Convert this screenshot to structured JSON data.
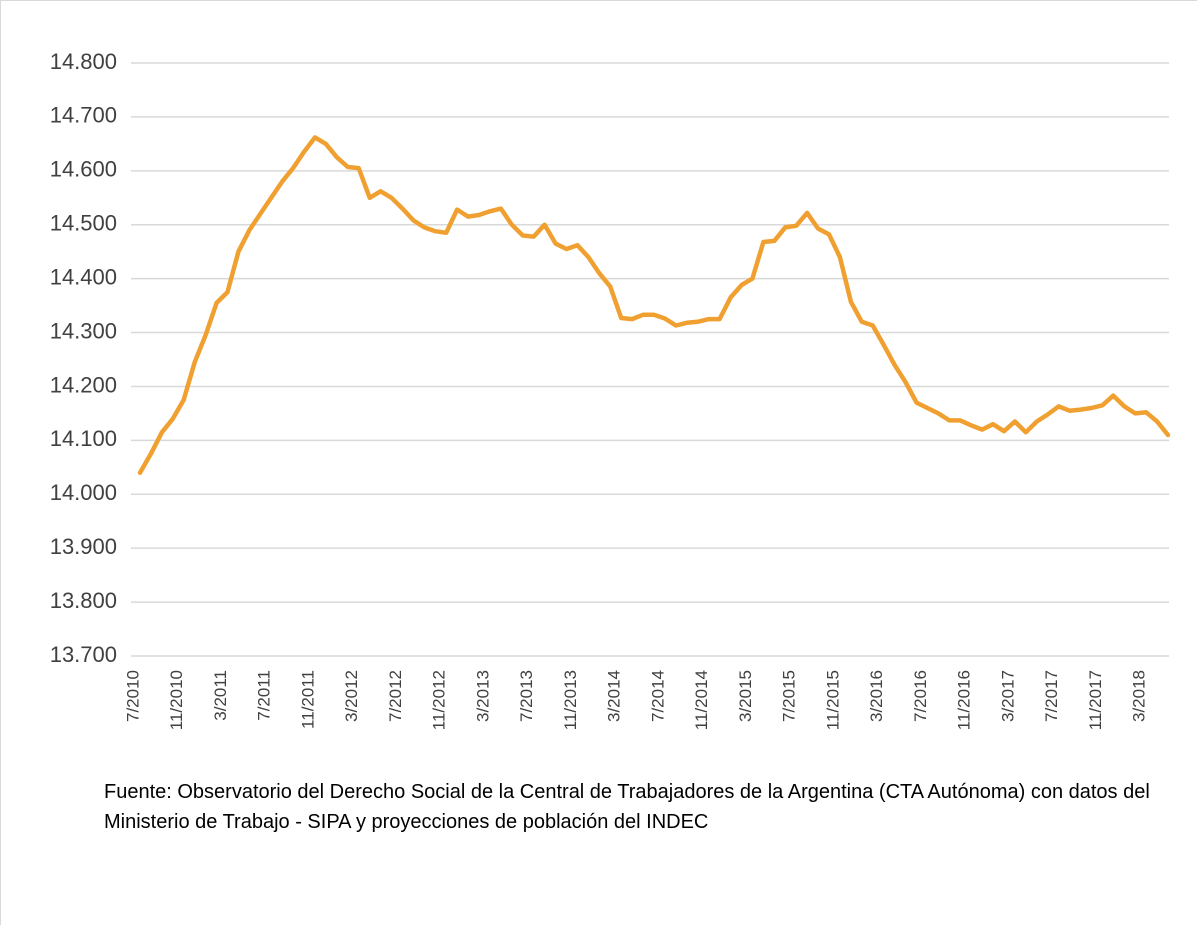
{
  "chart_data": {
    "type": "line",
    "categories": [
      "7/2010",
      null,
      null,
      null,
      "11/2010",
      null,
      null,
      null,
      "3/2011",
      null,
      null,
      null,
      "7/2011",
      null,
      null,
      null,
      "11/2011",
      null,
      null,
      null,
      "3/2012",
      null,
      null,
      null,
      "7/2012",
      null,
      null,
      null,
      "11/2012",
      null,
      null,
      null,
      "3/2013",
      null,
      null,
      null,
      "7/2013",
      null,
      null,
      null,
      "11/2013",
      null,
      null,
      null,
      "3/2014",
      null,
      null,
      null,
      "7/2014",
      null,
      null,
      null,
      "11/2014",
      null,
      null,
      null,
      "3/2015",
      null,
      null,
      null,
      "7/2015",
      null,
      null,
      null,
      "11/2015",
      null,
      null,
      null,
      "3/2016",
      null,
      null,
      null,
      "7/2016",
      null,
      null,
      null,
      "11/2016",
      null,
      null,
      null,
      "3/2017",
      null,
      null,
      null,
      "7/2017",
      null,
      null,
      null,
      "11/2017",
      null,
      null,
      null,
      "3/2018",
      null,
      null
    ],
    "series": [
      {
        "color": "#f0a030",
        "values": [
          14040,
          14075,
          14115,
          14140,
          14175,
          14245,
          14295,
          14355,
          14375,
          14450,
          14490,
          14520,
          14550,
          14580,
          14605,
          14635,
          14662,
          14650,
          14625,
          14607,
          14605,
          14550,
          14562,
          14550,
          14530,
          14508,
          14495,
          14488,
          14485,
          14528,
          14515,
          14518,
          14525,
          14530,
          14500,
          14480,
          14478,
          14500,
          14465,
          14455,
          14462,
          14440,
          14410,
          14385,
          14327,
          14325,
          14333,
          14333,
          14326,
          14313,
          14318,
          14320,
          14325,
          14325,
          14365,
          14388,
          14400,
          14468,
          14470,
          14495,
          14498,
          14522,
          14493,
          14482,
          14440,
          14357,
          14320,
          14313,
          14277,
          14240,
          14208,
          14170,
          14160,
          14150,
          14137,
          14137,
          14128,
          14120,
          14130,
          14117,
          14135,
          14115,
          14135,
          14148,
          14163,
          14155,
          14157,
          14160,
          14165,
          14183,
          14163,
          14150,
          14152,
          14135,
          14110
        ]
      }
    ],
    "ylim": [
      13700,
      14800
    ],
    "yticks": [
      {
        "value": 13700,
        "label": "13.700"
      },
      {
        "value": 13800,
        "label": "13.800"
      },
      {
        "value": 13900,
        "label": "13.900"
      },
      {
        "value": 14000,
        "label": "14.000"
      },
      {
        "value": 14100,
        "label": "14.100"
      },
      {
        "value": 14200,
        "label": "14.200"
      },
      {
        "value": 14300,
        "label": "14.300"
      },
      {
        "value": 14400,
        "label": "14.400"
      },
      {
        "value": 14500,
        "label": "14.500"
      },
      {
        "value": 14600,
        "label": "14.600"
      },
      {
        "value": 14700,
        "label": "14.700"
      },
      {
        "value": 14800,
        "label": "14.800"
      }
    ],
    "grid": true,
    "source": "Fuente: Observatorio del Derecho Social de la Central de Trabajadores de la Argentina (CTA Autónoma) con datos del Ministerio de Trabajo - SIPA y proyecciones de población del INDEC"
  }
}
